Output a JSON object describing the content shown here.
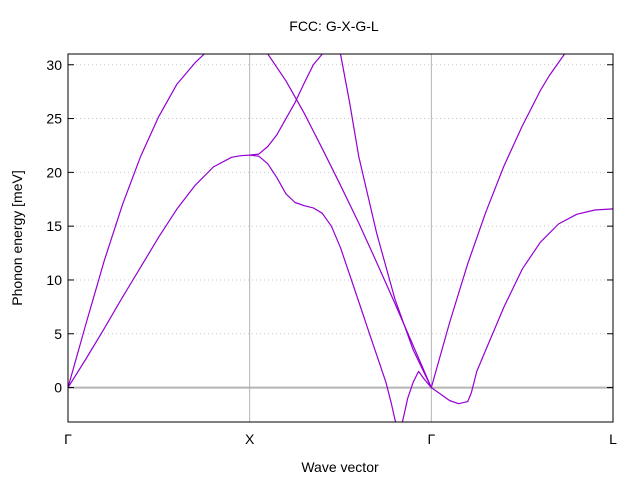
{
  "chart_data": {
    "type": "line",
    "title": "FCC: G-X-G-L",
    "xlabel": "Wave vector",
    "ylabel": "Phonon energy [meV]",
    "ylim": [
      -3.2,
      31
    ],
    "xlim": [
      0,
      3
    ],
    "yticks": [
      0,
      5,
      10,
      15,
      20,
      25,
      30
    ],
    "xticks": [
      {
        "pos": 0,
        "label": "Γ"
      },
      {
        "pos": 1,
        "label": "X"
      },
      {
        "pos": 2,
        "label": "Γ"
      },
      {
        "pos": 3,
        "label": "L"
      }
    ],
    "grid": true,
    "line_color": "#9400d3",
    "series": [
      {
        "x": [
          0,
          0.1,
          0.2,
          0.3,
          0.4,
          0.5,
          0.6,
          0.7,
          0.75,
          0.8
        ],
        "y": [
          0,
          6,
          11.8,
          17,
          21.5,
          25.2,
          28.2,
          30.2,
          31,
          31.5
        ]
      },
      {
        "x": [
          0,
          0.1,
          0.2,
          0.3,
          0.4,
          0.5,
          0.6,
          0.7,
          0.8,
          0.9,
          0.95,
          1.0,
          1.05,
          1.1,
          1.15,
          1.2,
          1.25,
          1.3,
          1.35,
          1.4,
          1.45,
          1.48
        ],
        "y": [
          0,
          2.7,
          5.5,
          8.4,
          11.2,
          14,
          16.6,
          18.8,
          20.5,
          21.4,
          21.55,
          21.6,
          21.7,
          22.4,
          23.5,
          25,
          26.5,
          28.3,
          30,
          31,
          32,
          33
        ]
      },
      {
        "x": [
          1.0,
          1.05,
          1.1,
          1.15,
          1.2,
          1.25,
          1.3,
          1.35,
          1.4,
          1.45,
          1.5,
          1.55,
          1.6,
          1.65,
          1.7,
          1.75,
          1.78,
          1.8,
          1.82,
          1.85
        ],
        "y": [
          21.6,
          21.5,
          20.8,
          19.5,
          18,
          17.2,
          16.9,
          16.7,
          16.2,
          15,
          13,
          10.5,
          8,
          5.5,
          3,
          0.5,
          -1.5,
          -3,
          -4,
          -6
        ]
      },
      {
        "x": [
          1.46,
          1.5,
          1.55,
          1.6,
          1.7,
          1.8,
          1.9,
          2.0
        ],
        "y": [
          33,
          31,
          26.5,
          21.5,
          14.3,
          8.2,
          3.5,
          0
        ]
      },
      {
        "x": [
          1.1,
          1.2,
          1.3,
          1.4,
          1.5,
          1.6,
          1.7,
          1.8,
          1.9,
          2.0
        ],
        "y": [
          31,
          28.5,
          25.5,
          22.2,
          18.8,
          15.3,
          11.6,
          7.8,
          3.9,
          0
        ]
      },
      {
        "x": [
          1.8,
          1.83,
          1.85,
          1.87,
          1.9,
          1.93,
          1.96,
          2.0
        ],
        "y": [
          -6,
          -4,
          -2.5,
          -1,
          0.5,
          1.5,
          0.8,
          0
        ]
      },
      {
        "x": [
          2.0,
          2.05,
          2.1,
          2.15,
          2.2,
          2.22,
          2.25,
          2.3,
          2.4,
          2.5,
          2.6,
          2.7,
          2.8,
          2.9,
          3.0
        ],
        "y": [
          0,
          -0.6,
          -1.2,
          -1.5,
          -1.3,
          -0.5,
          1.5,
          3.5,
          7.5,
          11,
          13.5,
          15.2,
          16.1,
          16.5,
          16.6
        ]
      },
      {
        "x": [
          2.0,
          2.1,
          2.2,
          2.3,
          2.4,
          2.5,
          2.6,
          2.65,
          2.7,
          2.75,
          2.8,
          2.9
        ],
        "y": [
          0,
          6,
          11.5,
          16.3,
          20.6,
          24.3,
          27.6,
          29,
          30.2,
          31.4,
          32,
          34
        ]
      }
    ]
  }
}
